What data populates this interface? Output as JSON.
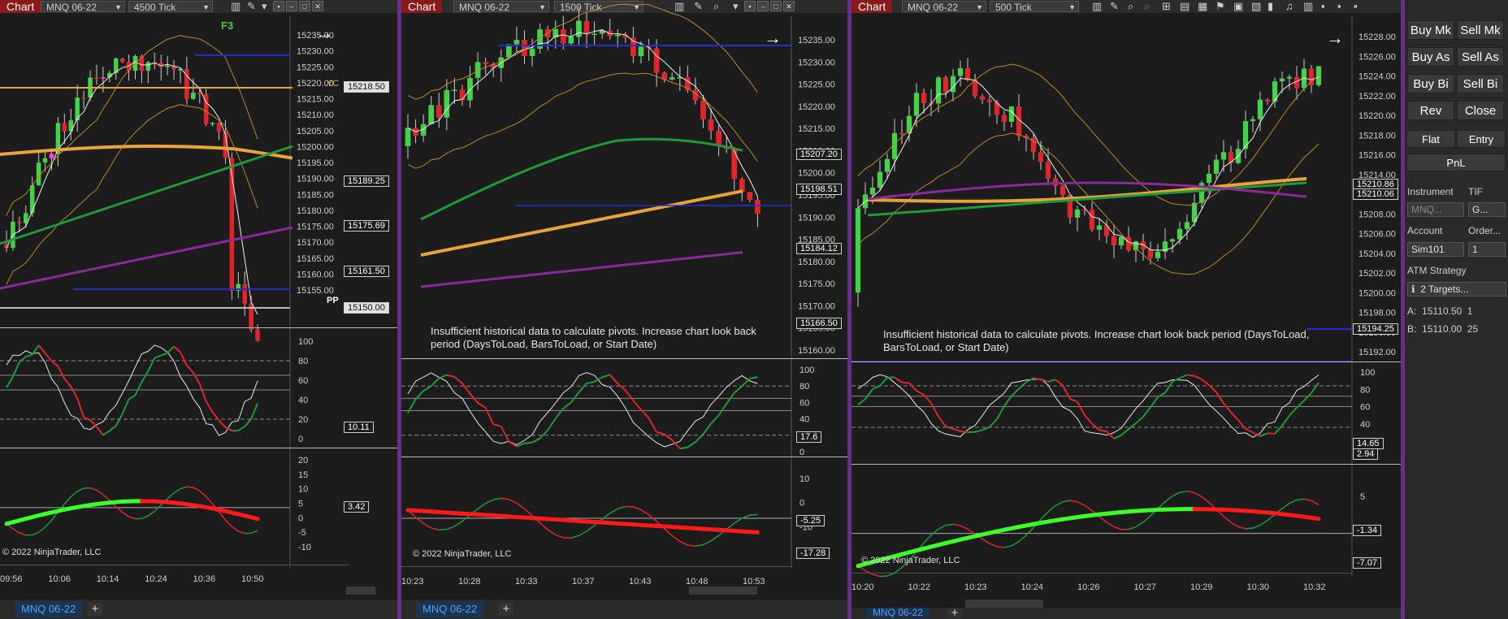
{
  "windows": [
    {
      "title": "Chart",
      "instrument": "MNQ 06-22",
      "period": "4500 Tick",
      "price_ticks": [
        "15235.00",
        "15230.00",
        "15225.00",
        "15220.00",
        "15215.00",
        "15210.00",
        "15205.00",
        "15200.00",
        "15195.00",
        "15190.00",
        "15185.00",
        "15180.00",
        "15175.00",
        "15170.00",
        "15165.00",
        "15160.00",
        "15155.00"
      ],
      "price_tags": [
        "15218.50",
        "15189.25",
        "15175.69",
        "15161.50",
        "15150.00"
      ],
      "osc_ticks": [
        "100",
        "80",
        "60",
        "40",
        "20",
        "0"
      ],
      "osc_tag": "10.11",
      "mom_ticks": [
        "20",
        "15",
        "10",
        "5",
        "0",
        "-5",
        "-10"
      ],
      "mom_tag": "3.42",
      "time_ticks": [
        "09:56",
        "10:06",
        "10:14",
        "10:24",
        "10:36",
        "10:50"
      ],
      "labels": {
        "yc": "YC",
        "pp": "PP",
        "f3": "F3"
      },
      "copyright": "© 2022 NinjaTrader, LLC",
      "tab": "MNQ 06-22"
    },
    {
      "title": "Chart",
      "instrument": "MNQ 06-22",
      "period": "1500 Tick",
      "price_ticks": [
        "15235.00",
        "15230.00",
        "15225.00",
        "15220.00",
        "15215.00",
        "15210.00",
        "15200.00",
        "15195.00",
        "15190.00",
        "15185.00",
        "15180.00",
        "15175.00",
        "15170.00",
        "15165.00",
        "15160.00"
      ],
      "price_tags": [
        "15207.20",
        "15198.51",
        "15184.12",
        "15166.50"
      ],
      "osc_ticks": [
        "100",
        "80",
        "60",
        "40",
        "20",
        "0"
      ],
      "osc_tag": "17.6",
      "mom_ticks": [
        "10",
        "0",
        "-10",
        "-20"
      ],
      "mom_tags": [
        "-5.25",
        "-17.28"
      ],
      "time_ticks": [
        "10:23",
        "10:28",
        "10:33",
        "10:37",
        "10:43",
        "10:48",
        "10:53"
      ],
      "note": "Insufficient historical data to calculate pivots. Increase chart look back period (DaysToLoad, BarsToLoad, or Start Date)",
      "copyright": "© 2022 NinjaTrader, LLC",
      "tab": "MNQ 06-22"
    },
    {
      "title": "Chart",
      "instrument": "MNQ 06-22",
      "period": "500 Tick",
      "price_ticks": [
        "15228.00",
        "15226.00",
        "15224.00",
        "15222.00",
        "15220.00",
        "15218.00",
        "15216.00",
        "15214.00",
        "15212.00",
        "15208.00",
        "15206.00",
        "15204.00",
        "15202.00",
        "15200.00",
        "15198.00",
        "15196.00",
        "15192.00"
      ],
      "price_tags": [
        "15210.86",
        "15210.06",
        "15194.25"
      ],
      "osc_ticks": [
        "100",
        "80",
        "60",
        "40",
        "20"
      ],
      "osc_tags": [
        "14.65",
        "2.94"
      ],
      "mom_ticks": [
        "5",
        "0",
        "-5"
      ],
      "mom_tags": [
        "-1.34",
        "-7.07"
      ],
      "time_ticks": [
        "10:20",
        "10:22",
        "10:23",
        "10:24",
        "10:26",
        "10:27",
        "10:29",
        "10:30",
        "10:32"
      ],
      "note": "Insufficient historical data to calculate pivots. Increase chart look back period (DaysToLoad, BarsToLoad, or Start Date)",
      "copyright": "© 2022 NinjaTrader, LLC",
      "tab": "MNQ 06-22"
    }
  ],
  "order_panel": {
    "buy_mkt": "Buy Mk",
    "sell_mkt": "Sell Mk",
    "buy_ask": "Buy As",
    "sell_ask": "Sell As",
    "buy_bid": "Buy Bi",
    "sell_bid": "Sell Bi",
    "rev": "Rev",
    "close": "Close",
    "flat": "Flat",
    "entry": "Entry",
    "pnl": "PnL",
    "instrument_label": "Instrument",
    "tif_label": "TIF",
    "instrument_value": "MNQ...",
    "tif_value": "G...",
    "account_label": "Account",
    "order_label": "Order...",
    "account_value": "Sim101",
    "order_value": "1",
    "atm_label": "ATM Strategy",
    "atm_value": "2 Targets...",
    "a_label": "A:",
    "a_price": "15110.50",
    "a_qty": "1",
    "b_label": "B:",
    "b_price": "15110.00",
    "b_qty": "25"
  },
  "colors": {
    "up": "#45d14a",
    "down": "#e0252b",
    "ema_slow": "#e8a43a",
    "ema_mid": "#1f9a3a",
    "ema_long": "#8a2a9a",
    "band": "#b98a2a",
    "pp_line": "#2030d0",
    "accent": "#8a1a1a"
  }
}
